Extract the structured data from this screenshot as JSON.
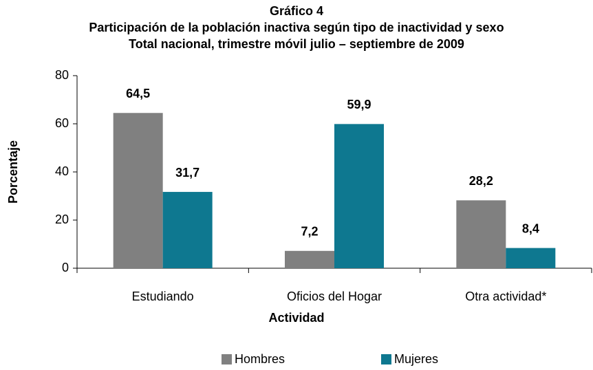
{
  "chart_data": {
    "type": "bar",
    "title": "Gráfico 4",
    "subtitle": [
      "Participación de la población inactiva según tipo de inactividad y sexo",
      "Total nacional, trimestre móvil julio – septiembre de 2009"
    ],
    "xlabel": "Actividad",
    "ylabel": "Porcentaje",
    "categories": [
      "Estudiando",
      "Oficios del Hogar",
      "Otra actividad*"
    ],
    "series": [
      {
        "name": "Hombres",
        "color": "#808080",
        "values": [
          64.5,
          7.2,
          28.2
        ],
        "value_labels": [
          "64,5",
          "7,2",
          "28,2"
        ]
      },
      {
        "name": "Mujeres",
        "color": "#0e7890",
        "values": [
          31.7,
          59.9,
          8.4
        ],
        "value_labels": [
          "31,7",
          "59,9",
          "8,4"
        ]
      }
    ],
    "ylim": [
      0,
      80
    ],
    "yticks": [
      0,
      20,
      40,
      60,
      80
    ],
    "grid": false,
    "legend": "bottom"
  }
}
